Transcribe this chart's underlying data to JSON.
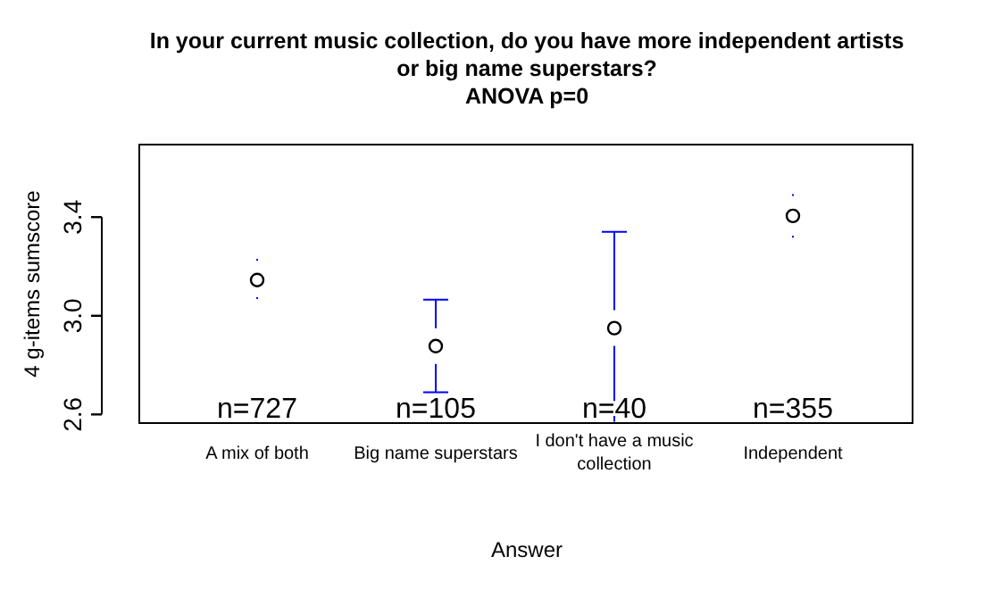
{
  "chart_data": {
    "type": "scatter",
    "title": "In your current music collection, do you have more independent artists\nor big name superstars?\nANOVA p=0",
    "xlabel": "Answer",
    "ylabel": "4 g-items sumscore",
    "categories": [
      "A mix of both",
      "Big name superstars",
      "I don't have a music collection",
      "Independent"
    ],
    "series": [
      {
        "color": "#000000",
        "values": [
          3.145,
          2.877,
          2.95,
          3.405
        ],
        "errors": [
          [
            3.072,
            3.227
          ],
          [
            2.69,
            3.065
          ],
          [
            2.57,
            3.34
          ],
          [
            3.32,
            3.49
          ]
        ]
      }
    ],
    "ylim": [
      2.565,
      3.694
    ],
    "yticks": [
      2.6,
      {
        "value": 3.0,
        "label": "3.0"
      },
      3.4
    ],
    "marker": "circle",
    "annotations": [
      "n=727",
      "n=105",
      "n=40",
      "n=355"
    ]
  }
}
